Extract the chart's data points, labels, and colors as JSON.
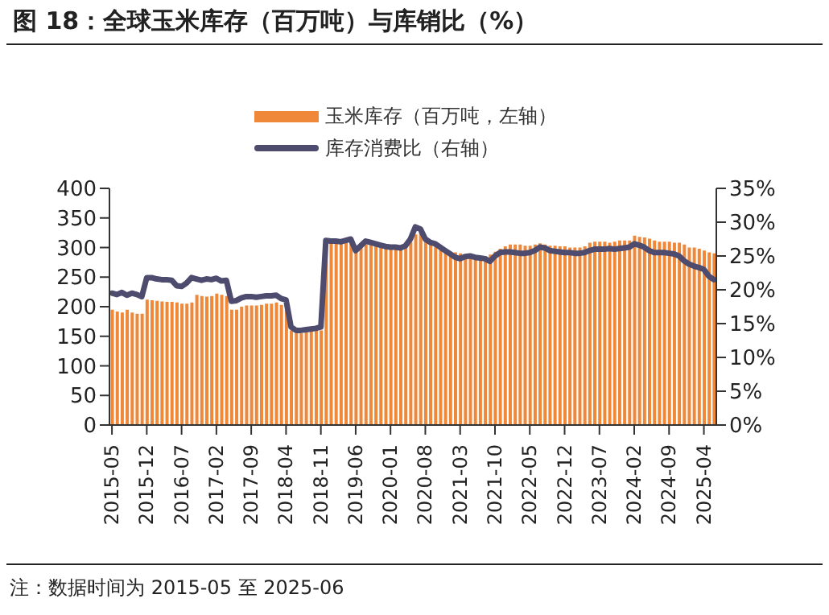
{
  "chart_data": {
    "type": "bar",
    "title": "图 18：全球玉米库存（百万吨）与库销比（%）",
    "categories": [
      "2015-05",
      null,
      null,
      null,
      null,
      null,
      null,
      "2015-12",
      null,
      null,
      null,
      null,
      null,
      null,
      "2016-07",
      null,
      null,
      null,
      null,
      null,
      null,
      "2017-02",
      null,
      null,
      null,
      null,
      null,
      null,
      "2017-09",
      null,
      null,
      null,
      null,
      null,
      null,
      "2018-04",
      null,
      null,
      null,
      null,
      null,
      null,
      "2018-11",
      null,
      null,
      null,
      null,
      null,
      null,
      "2019-06",
      null,
      null,
      null,
      null,
      null,
      null,
      "2020-01",
      null,
      null,
      null,
      null,
      null,
      null,
      "2020-08",
      null,
      null,
      null,
      null,
      null,
      null,
      "2021-03",
      null,
      null,
      null,
      null,
      null,
      null,
      "2021-10",
      null,
      null,
      null,
      null,
      null,
      null,
      "2022-05",
      null,
      null,
      null,
      null,
      null,
      null,
      "2022-12",
      null,
      null,
      null,
      null,
      null,
      null,
      "2023-07",
      null,
      null,
      null,
      null,
      null,
      null,
      "2024-02",
      null,
      null,
      null,
      null,
      null,
      null,
      "2024-09",
      null,
      null,
      null,
      null,
      null,
      null,
      "2025-04",
      null,
      null
    ],
    "series": [
      {
        "name": "玉米库存（百万吨，左轴）",
        "color": "#f0883a",
        "values": [
          195,
          192,
          190,
          195,
          190,
          188,
          188,
          212,
          211,
          210,
          209,
          208,
          208,
          207,
          205,
          205,
          207,
          220,
          218,
          217,
          218,
          222,
          220,
          218,
          195,
          195,
          200,
          202,
          202,
          202,
          203,
          205,
          205,
          207,
          203,
          200,
          160,
          155,
          155,
          157,
          158,
          160,
          160,
          300,
          308,
          307,
          308,
          310,
          310,
          295,
          300,
          305,
          305,
          303,
          300,
          298,
          298,
          298,
          300,
          305,
          310,
          322,
          325,
          315,
          310,
          305,
          300,
          295,
          292,
          292,
          290,
          285,
          285,
          283,
          283,
          285,
          288,
          293,
          298,
          302,
          305,
          305,
          305,
          303,
          303,
          305,
          307,
          305,
          303,
          303,
          302,
          302,
          300,
          300,
          300,
          302,
          308,
          310,
          310,
          310,
          308,
          310,
          312,
          312,
          312,
          320,
          318,
          317,
          315,
          312,
          310,
          310,
          310,
          308,
          308,
          305,
          300,
          300,
          298,
          295,
          292,
          290
        ]
      },
      {
        "name": "库存消费比（右轴）",
        "type": "line",
        "axis": "y2",
        "color": "#4d4b6e",
        "values": [
          19.5,
          19.3,
          19.6,
          19.2,
          19.5,
          19.3,
          19.0,
          21.8,
          21.8,
          21.6,
          21.5,
          21.5,
          21.4,
          20.6,
          20.5,
          21.0,
          21.8,
          21.6,
          21.4,
          21.6,
          21.5,
          21.7,
          21.3,
          21.4,
          18.3,
          18.4,
          18.8,
          19.0,
          19.0,
          18.9,
          19.0,
          19.1,
          19.1,
          19.2,
          18.7,
          18.5,
          14.5,
          14.0,
          14.0,
          14.1,
          14.2,
          14.3,
          14.5,
          27.3,
          27.2,
          27.2,
          27.1,
          27.3,
          27.5,
          25.8,
          26.5,
          27.2,
          27.0,
          26.8,
          26.6,
          26.4,
          26.3,
          26.3,
          26.2,
          26.5,
          27.5,
          29.3,
          29.0,
          27.5,
          27.0,
          26.8,
          26.3,
          25.8,
          25.3,
          24.8,
          24.6,
          24.9,
          25.0,
          24.8,
          24.7,
          24.6,
          24.2,
          25.0,
          25.5,
          25.6,
          25.6,
          25.5,
          25.4,
          25.4,
          25.5,
          25.8,
          26.3,
          26.2,
          25.8,
          25.7,
          25.6,
          25.5,
          25.5,
          25.4,
          25.4,
          25.5,
          25.8,
          26.0,
          26.0,
          26.0,
          26.1,
          26.0,
          26.1,
          26.2,
          26.3,
          26.8,
          26.6,
          26.3,
          25.8,
          25.5,
          25.5,
          25.5,
          25.4,
          25.3,
          25.0,
          24.3,
          23.8,
          23.5,
          23.3,
          23.0,
          22.0,
          21.5
        ]
      }
    ],
    "ylim": [
      0,
      400
    ],
    "yticks": [
      0,
      50,
      100,
      150,
      200,
      250,
      300,
      350,
      400
    ],
    "y2lim": [
      0,
      35
    ],
    "y2ticks": [
      {
        "value": 0,
        "label": "0%"
      },
      {
        "value": 5,
        "label": "5%"
      },
      {
        "value": 10,
        "label": "10%"
      },
      {
        "value": 15,
        "label": "15%"
      },
      {
        "value": 20,
        "label": "20%"
      },
      {
        "value": 25,
        "label": "25%"
      },
      {
        "value": 30,
        "label": "30%"
      },
      {
        "value": 35,
        "label": "35%"
      }
    ],
    "legend": "top",
    "grid": false,
    "marker": "none",
    "annotations": [
      "注：数据时间为 2015-05 至 2025-06"
    ]
  }
}
